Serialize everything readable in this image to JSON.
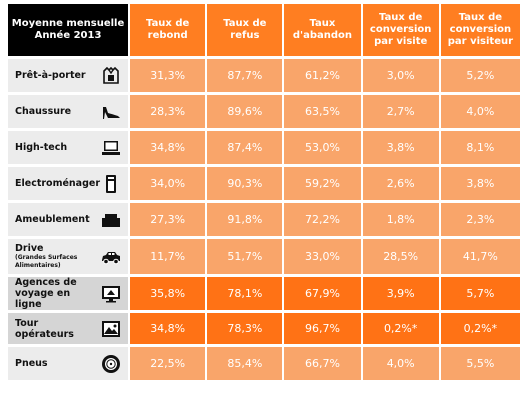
{
  "chart_data": {
    "type": "table",
    "header": {
      "corner": [
        "Moyenne mensuelle",
        "Année 2013"
      ],
      "columns": [
        [
          "Taux de",
          "rebond"
        ],
        [
          "Taux de refus"
        ],
        [
          "Taux",
          "d'abandon"
        ],
        [
          "Taux de",
          "conversion",
          "par visite"
        ],
        [
          "Taux de",
          "conversion",
          "par visiteur"
        ]
      ]
    },
    "rows": [
      {
        "label": "Prêt-à-porter",
        "sub": "",
        "icon": "clothing-icon",
        "values": [
          "31,3%",
          "87,7%",
          "61,2%",
          "3,0%",
          "5,2%"
        ]
      },
      {
        "label": "Chaussure",
        "sub": "",
        "icon": "high-heel-shoe-icon",
        "values": [
          "28,3%",
          "89,6%",
          "63,5%",
          "2,7%",
          "4,0%"
        ]
      },
      {
        "label": "High-tech",
        "sub": "",
        "icon": "laptop-icon",
        "values": [
          "34,8%",
          "87,4%",
          "53,0%",
          "3,8%",
          "8,1%"
        ]
      },
      {
        "label": "Electroménager",
        "sub": "",
        "icon": "appliance-icon",
        "values": [
          "34,0%",
          "90,3%",
          "59,2%",
          "2,6%",
          "3,8%"
        ]
      },
      {
        "label": "Ameublement",
        "sub": "",
        "icon": "armchair-icon",
        "values": [
          "27,3%",
          "91,8%",
          "72,2%",
          "1,8%",
          "2,3%"
        ]
      },
      {
        "label": "Drive",
        "sub": "(Grandes Surfaces Alimentaires)",
        "icon": "car-icon",
        "values": [
          "11,7%",
          "51,7%",
          "33,0%",
          "28,5%",
          "41,7%"
        ]
      },
      {
        "label": "Agences de voyage en ligne",
        "sub": "",
        "icon": "monitor-icon",
        "values": [
          "35,8%",
          "78,1%",
          "67,9%",
          "3,9%",
          "5,7%"
        ]
      },
      {
        "label": "Tour opérateurs",
        "sub": "",
        "icon": "picture-icon",
        "values": [
          "34,8%",
          "78,3%",
          "96,7%",
          "0,2%*",
          "0,2%*"
        ]
      },
      {
        "label": "Pneus",
        "sub": "",
        "icon": "tire-icon",
        "values": [
          "22,5%",
          "85,4%",
          "66,7%",
          "4,0%",
          "5,5%"
        ]
      }
    ],
    "row_styles": [
      "light",
      "light",
      "light",
      "light",
      "light",
      "light",
      "dark",
      "dark",
      "light"
    ],
    "colors": {
      "header_corner": "#000000",
      "header": "#ff7e21",
      "light_cell": "#f9a56a",
      "dark_cell": "#ff7215",
      "label_bg": "#ececec"
    }
  }
}
